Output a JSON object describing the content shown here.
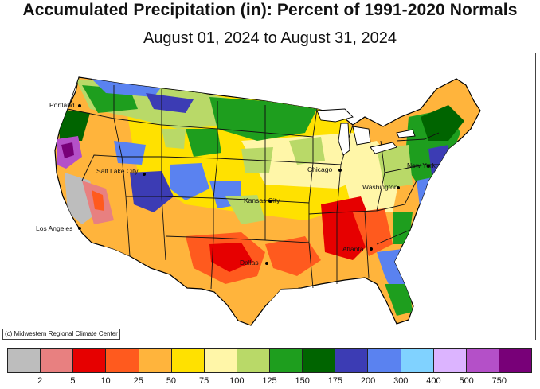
{
  "header": {
    "title": "Accumulated Precipitation (in): Percent of 1991-2020 Normals",
    "subtitle": "August 01, 2024 to August 31, 2024"
  },
  "map": {
    "cities": [
      {
        "id": "portland",
        "label": "Portland"
      },
      {
        "id": "salt-lake-city",
        "label": "Salt Lake City"
      },
      {
        "id": "los-angeles",
        "label": "Los Angeles"
      },
      {
        "id": "kansas-city",
        "label": "Kansas City"
      },
      {
        "id": "dallas",
        "label": "Dallas"
      },
      {
        "id": "chicago",
        "label": "Chicago"
      },
      {
        "id": "washington",
        "label": "Washington"
      },
      {
        "id": "new-york",
        "label": "New York"
      },
      {
        "id": "atlanta",
        "label": "Atlanta"
      }
    ],
    "copyright": "(c) Midwestern Regional Climate Center"
  },
  "legend": {
    "colors": [
      "#bdbdbd",
      "#e88080",
      "#e60000",
      "#ff5a1e",
      "#ffb43c",
      "#ffe100",
      "#fff6a8",
      "#b9d968",
      "#1e9e1e",
      "#006400",
      "#3c3cb4",
      "#5a82f0",
      "#80d2ff",
      "#dcb4ff",
      "#b450c8",
      "#780078"
    ],
    "ticks": [
      "2",
      "5",
      "10",
      "25",
      "50",
      "75",
      "100",
      "125",
      "150",
      "175",
      "200",
      "300",
      "400",
      "500",
      "750"
    ]
  }
}
